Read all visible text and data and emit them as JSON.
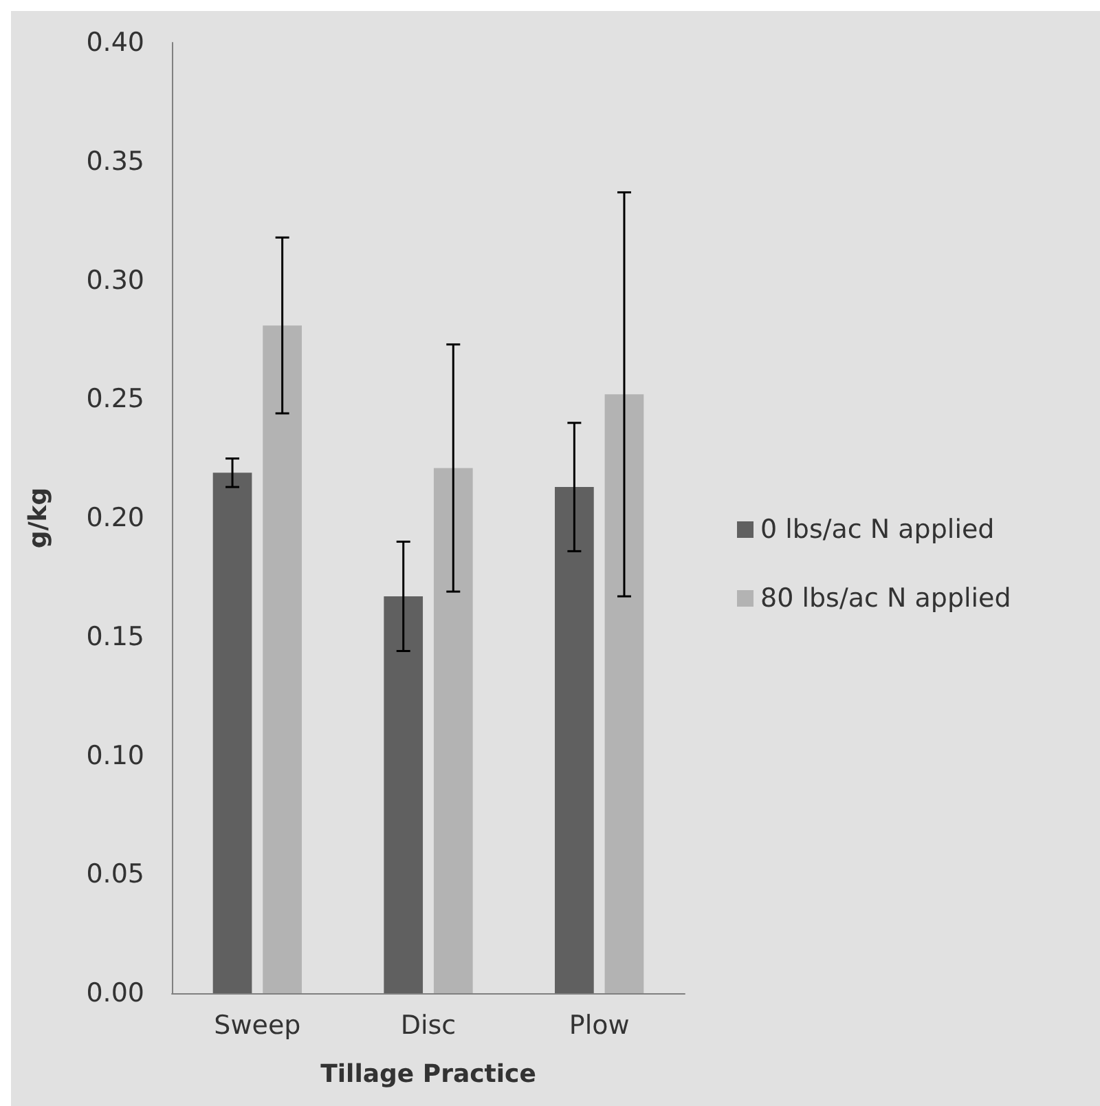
{
  "chart_data": {
    "type": "bar",
    "xlabel": "Tillage Practice",
    "ylabel": "g/kg",
    "categories": [
      "Sweep",
      "Disc",
      "Plow"
    ],
    "series": [
      {
        "name": "0 lbs/ac N applied",
        "color": "#606060",
        "values": [
          0.219,
          0.167,
          0.213
        ],
        "errors": [
          0.006,
          0.023,
          0.027
        ]
      },
      {
        "name": "80 lbs/ac N applied",
        "color": "#b3b3b3",
        "values": [
          0.281,
          0.221,
          0.252
        ],
        "errors": [
          0.037,
          0.052,
          0.085
        ]
      }
    ],
    "ylim": [
      0,
      0.4
    ],
    "yticks": [
      {
        "value": 0,
        "label": "0.00"
      },
      {
        "value": 0.05,
        "label": "0.05"
      },
      {
        "value": 0.1,
        "label": "0.10"
      },
      {
        "value": 0.15,
        "label": "0.15"
      },
      {
        "value": 0.2,
        "label": "0.20"
      },
      {
        "value": 0.25,
        "label": "0.25"
      },
      {
        "value": 0.3,
        "label": "0.30"
      },
      {
        "value": 0.35,
        "label": "0.35"
      },
      {
        "value": 0.4,
        "label": "0.40"
      }
    ],
    "legend": "right"
  }
}
